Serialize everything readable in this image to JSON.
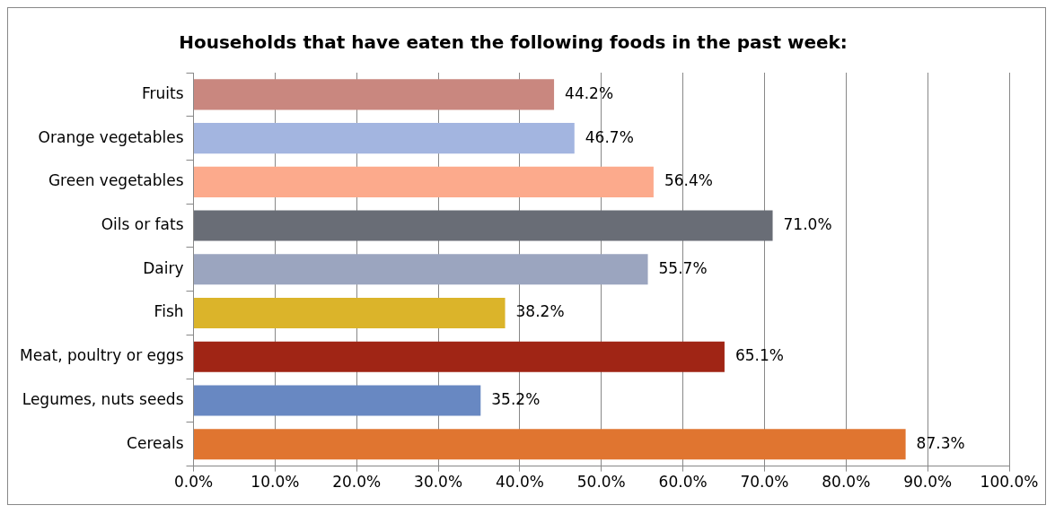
{
  "chart_data": {
    "type": "bar",
    "orientation": "horizontal",
    "title": "Households that have eaten the following foods in the past week:",
    "categories": [
      "Fruits",
      "Orange vegetables",
      "Green vegetables",
      "Oils or fats",
      "Dairy",
      "Fish",
      "Meat, poultry or eggs",
      "Legumes, nuts seeds",
      "Cereals"
    ],
    "values": [
      44.2,
      46.7,
      56.4,
      71.0,
      55.7,
      38.2,
      65.1,
      35.2,
      87.3
    ],
    "colors": [
      "#c9877f",
      "#a3b5e0",
      "#fcaa8c",
      "#696d76",
      "#9ba5bf",
      "#dbb42a",
      "#a02515",
      "#6888c2",
      "#e07530"
    ],
    "value_labels": [
      "44.2%",
      "46.7%",
      "56.4%",
      "71.0%",
      "55.7%",
      "38.2%",
      "65.1%",
      "35.2%",
      "87.3%"
    ],
    "xlim": [
      0,
      100
    ],
    "xticks": [
      {
        "value": 0,
        "label": "0.0%"
      },
      {
        "value": 10,
        "label": "10.0%"
      },
      {
        "value": 20,
        "label": "20.0%"
      },
      {
        "value": 30,
        "label": "30.0%"
      },
      {
        "value": 40,
        "label": "40.0%"
      },
      {
        "value": 50,
        "label": "50.0%"
      },
      {
        "value": 60,
        "label": "60.0%"
      },
      {
        "value": 70,
        "label": "70.0%"
      },
      {
        "value": 80,
        "label": "80.0%"
      },
      {
        "value": 90,
        "label": "90.0%"
      },
      {
        "value": 100,
        "label": "100.0%"
      }
    ],
    "grid": "x",
    "legend": false
  }
}
